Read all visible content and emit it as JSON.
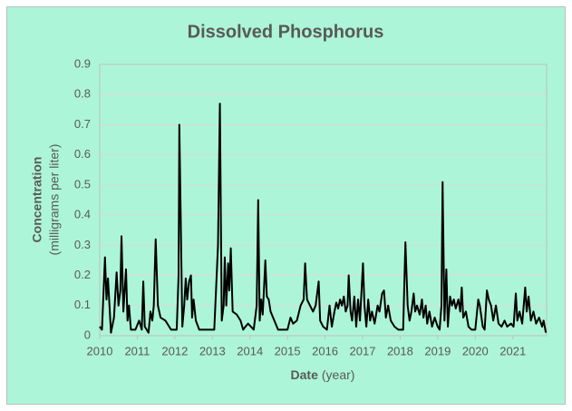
{
  "chart_data": {
    "type": "line",
    "title": "Dissolved Phosphorus",
    "x_label": "Date",
    "x_label_unit": "(year)",
    "y_label": "Concentration",
    "y_label_unit": "(milligrams per liter)",
    "xlim": [
      2010,
      2021.9
    ],
    "xticks": [
      2010,
      2011,
      2012,
      2013,
      2014,
      2015,
      2016,
      2017,
      2018,
      2019,
      2020,
      2021
    ],
    "ylim": [
      0,
      0.9
    ],
    "yticks": [
      0,
      0.1,
      0.2,
      0.3,
      0.4,
      0.5,
      0.6,
      0.7,
      0.8,
      0.9
    ],
    "grid": true,
    "color": "#000000",
    "x": [
      2010.0,
      2010.06,
      2010.14,
      2010.18,
      2010.22,
      2010.3,
      2010.38,
      2010.45,
      2010.5,
      2010.55,
      2010.58,
      2010.63,
      2010.7,
      2010.74,
      2010.78,
      2010.83,
      2010.95,
      2011.05,
      2011.12,
      2011.16,
      2011.2,
      2011.3,
      2011.35,
      2011.4,
      2011.44,
      2011.49,
      2011.55,
      2011.62,
      2011.75,
      2011.9,
      2012.05,
      2012.1,
      2012.12,
      2012.2,
      2012.25,
      2012.29,
      2012.33,
      2012.38,
      2012.43,
      2012.46,
      2012.5,
      2012.56,
      2012.65,
      2012.9,
      2013.05,
      2013.15,
      2013.2,
      2013.25,
      2013.3,
      2013.33,
      2013.37,
      2013.42,
      2013.45,
      2013.49,
      2013.54,
      2013.65,
      2013.75,
      2013.82,
      2013.88,
      2013.95,
      2014.1,
      2014.18,
      2014.22,
      2014.26,
      2014.3,
      2014.34,
      2014.38,
      2014.41,
      2014.45,
      2014.5,
      2014.55,
      2014.65,
      2014.75,
      2015.0,
      2015.08,
      2015.15,
      2015.25,
      2015.35,
      2015.43,
      2015.47,
      2015.52,
      2015.6,
      2015.68,
      2015.75,
      2015.83,
      2015.87,
      2015.95,
      2016.05,
      2016.12,
      2016.18,
      2016.25,
      2016.3,
      2016.35,
      2016.4,
      2016.45,
      2016.5,
      2016.55,
      2016.6,
      2016.63,
      2016.68,
      2016.72,
      2016.78,
      2016.83,
      2016.88,
      2016.93,
      2017.01,
      2017.05,
      2017.1,
      2017.15,
      2017.2,
      2017.25,
      2017.32,
      2017.4,
      2017.45,
      2017.52,
      2017.57,
      2017.62,
      2017.68,
      2017.75,
      2017.85,
      2017.95,
      2018.08,
      2018.14,
      2018.2,
      2018.25,
      2018.3,
      2018.36,
      2018.4,
      2018.45,
      2018.52,
      2018.58,
      2018.62,
      2018.68,
      2018.72,
      2018.78,
      2018.85,
      2018.92,
      2019.0,
      2019.05,
      2019.1,
      2019.13,
      2019.18,
      2019.23,
      2019.27,
      2019.33,
      2019.38,
      2019.43,
      2019.48,
      2019.55,
      2019.6,
      2019.64,
      2019.68,
      2019.75,
      2019.82,
      2019.9,
      2020.0,
      2020.08,
      2020.12,
      2020.2,
      2020.25,
      2020.31,
      2020.36,
      2020.42,
      2020.48,
      2020.55,
      2020.62,
      2020.7,
      2020.78,
      2020.85,
      2020.95,
      2021.02,
      2021.08,
      2021.12,
      2021.18,
      2021.25,
      2021.33,
      2021.37,
      2021.42,
      2021.48,
      2021.55,
      2021.62,
      2021.7,
      2021.78,
      2021.82,
      2021.88
    ],
    "values": [
      0.03,
      0.02,
      0.26,
      0.12,
      0.19,
      0.01,
      0.06,
      0.21,
      0.1,
      0.15,
      0.33,
      0.08,
      0.22,
      0.05,
      0.1,
      0.02,
      0.02,
      0.05,
      0.02,
      0.18,
      0.03,
      0.01,
      0.08,
      0.05,
      0.1,
      0.32,
      0.1,
      0.06,
      0.05,
      0.02,
      0.02,
      0.2,
      0.7,
      0.03,
      0.1,
      0.19,
      0.12,
      0.18,
      0.2,
      0.06,
      0.12,
      0.05,
      0.02,
      0.02,
      0.02,
      0.3,
      0.77,
      0.05,
      0.1,
      0.26,
      0.1,
      0.24,
      0.15,
      0.29,
      0.08,
      0.07,
      0.05,
      0.02,
      0.03,
      0.04,
      0.02,
      0.1,
      0.45,
      0.05,
      0.12,
      0.07,
      0.17,
      0.25,
      0.13,
      0.12,
      0.08,
      0.05,
      0.02,
      0.02,
      0.06,
      0.04,
      0.05,
      0.1,
      0.12,
      0.24,
      0.12,
      0.1,
      0.08,
      0.1,
      0.18,
      0.05,
      0.03,
      0.02,
      0.1,
      0.03,
      0.08,
      0.11,
      0.09,
      0.12,
      0.1,
      0.13,
      0.08,
      0.1,
      0.2,
      0.08,
      0.05,
      0.13,
      0.03,
      0.12,
      0.05,
      0.24,
      0.1,
      0.03,
      0.12,
      0.05,
      0.08,
      0.04,
      0.1,
      0.08,
      0.14,
      0.15,
      0.06,
      0.1,
      0.05,
      0.03,
      0.02,
      0.02,
      0.31,
      0.1,
      0.05,
      0.08,
      0.14,
      0.08,
      0.1,
      0.07,
      0.12,
      0.06,
      0.1,
      0.04,
      0.08,
      0.03,
      0.06,
      0.03,
      0.02,
      0.1,
      0.51,
      0.05,
      0.22,
      0.03,
      0.13,
      0.1,
      0.12,
      0.09,
      0.12,
      0.08,
      0.16,
      0.06,
      0.08,
      0.03,
      0.02,
      0.02,
      0.12,
      0.1,
      0.03,
      0.02,
      0.15,
      0.12,
      0.1,
      0.05,
      0.1,
      0.04,
      0.03,
      0.05,
      0.03,
      0.04,
      0.03,
      0.14,
      0.05,
      0.08,
      0.04,
      0.16,
      0.08,
      0.13,
      0.05,
      0.08,
      0.04,
      0.06,
      0.03,
      0.05,
      0.01
    ]
  }
}
